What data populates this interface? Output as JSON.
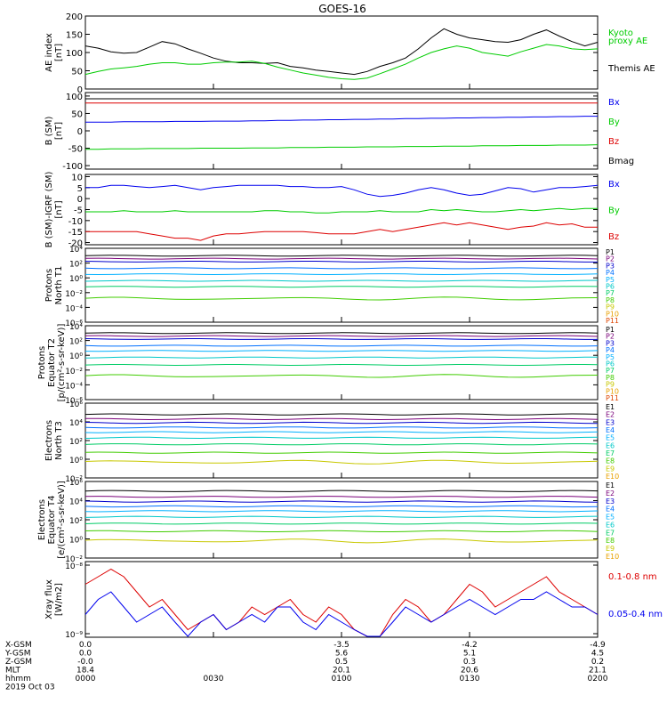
{
  "title": "GOES-16",
  "colors": {
    "black": "#000000",
    "blue": "#0000ee",
    "green": "#00cc00",
    "red": "#dd0000",
    "ch": [
      "#000000",
      "#7a007a",
      "#0000cc",
      "#0070ff",
      "#00b0ff",
      "#00c8c8",
      "#00cc66",
      "#40cc00",
      "#c8c800",
      "#e8a000",
      "#dd4400",
      "#cc0000"
    ]
  },
  "chart_data": [
    {
      "type": "line",
      "panel": "AE index",
      "ylabel": [
        "AE index",
        "[nT]"
      ],
      "ylim": [
        0,
        200
      ],
      "yticks": [
        "0",
        "50",
        "100",
        "150",
        "200"
      ],
      "legend": [
        {
          "label": "Kyoto",
          "color": "#00cc00"
        },
        {
          "label": "proxy AE",
          "color": "#00cc00"
        },
        {
          "label": "Themis AE",
          "color": "#000000"
        }
      ],
      "series": [
        {
          "name": "Themis AE",
          "color": "#000000",
          "values": [
            118,
            112,
            102,
            98,
            100,
            115,
            130,
            124,
            110,
            98,
            85,
            76,
            72,
            72,
            70,
            72,
            62,
            58,
            52,
            48,
            44,
            40,
            48,
            62,
            72,
            85,
            110,
            140,
            165,
            150,
            140,
            135,
            130,
            128,
            135,
            150,
            162,
            145,
            130,
            118,
            128
          ]
        },
        {
          "name": "Kyoto proxy AE",
          "color": "#00cc00",
          "values": [
            40,
            48,
            55,
            58,
            62,
            68,
            72,
            72,
            68,
            68,
            72,
            74,
            74,
            76,
            70,
            60,
            52,
            44,
            38,
            32,
            28,
            26,
            30,
            42,
            55,
            68,
            85,
            100,
            110,
            118,
            112,
            100,
            95,
            90,
            102,
            112,
            122,
            118,
            110,
            108,
            110
          ]
        }
      ]
    },
    {
      "type": "line",
      "panel": "B (SM)",
      "ylabel": [
        "B (SM)",
        "[nT]"
      ],
      "ylim": [
        -110,
        110
      ],
      "yticks": [
        "-100",
        "-50",
        "0",
        "50",
        "100"
      ],
      "legend": [
        {
          "label": "Bx",
          "color": "#0000ee"
        },
        {
          "label": "By",
          "color": "#00cc00"
        },
        {
          "label": "Bz",
          "color": "#dd0000"
        },
        {
          "label": "Bmag",
          "color": "#000000"
        }
      ],
      "series": [
        {
          "name": "Bmag",
          "color": "#000000",
          "values": [
            92,
            92,
            92,
            92,
            92,
            92,
            92,
            92,
            92,
            92,
            92,
            92,
            92,
            92,
            92,
            92,
            92,
            92,
            92,
            92,
            92,
            92,
            92,
            92,
            92,
            92,
            92,
            92,
            92,
            92,
            92,
            92,
            92,
            92,
            92,
            92,
            92,
            92,
            92,
            92,
            92
          ]
        },
        {
          "name": "Bz",
          "color": "#dd0000",
          "values": [
            80,
            80,
            80,
            80,
            80,
            80,
            80,
            80,
            80,
            80,
            80,
            80,
            80,
            80,
            80,
            80,
            80,
            80,
            80,
            80,
            80,
            80,
            80,
            80,
            80,
            80,
            80,
            80,
            80,
            80,
            80,
            80,
            80,
            80,
            80,
            80,
            80,
            80,
            80,
            80,
            80
          ]
        },
        {
          "name": "Bx",
          "color": "#0000ee",
          "values": [
            25,
            25,
            25,
            26,
            26,
            26,
            26,
            27,
            27,
            27,
            28,
            28,
            28,
            29,
            29,
            30,
            30,
            31,
            31,
            32,
            32,
            33,
            33,
            34,
            34,
            35,
            35,
            36,
            36,
            37,
            37,
            38,
            38,
            39,
            39,
            40,
            40,
            41,
            41,
            42,
            42
          ]
        },
        {
          "name": "By",
          "color": "#00cc00",
          "values": [
            -53,
            -53,
            -52,
            -52,
            -52,
            -51,
            -51,
            -51,
            -51,
            -50,
            -50,
            -50,
            -50,
            -49,
            -49,
            -49,
            -48,
            -48,
            -48,
            -47,
            -47,
            -47,
            -46,
            -46,
            -46,
            -45,
            -45,
            -45,
            -44,
            -44,
            -44,
            -43,
            -43,
            -43,
            -42,
            -42,
            -42,
            -41,
            -41,
            -41,
            -40
          ]
        }
      ]
    },
    {
      "type": "line",
      "panel": "B (SM)-IGRF (SM)",
      "ylabel": [
        "B (SM)-IGRF (SM)",
        "[nT]"
      ],
      "ylim": [
        -21,
        11
      ],
      "yticks": [
        "-20",
        "-15",
        "-10",
        "-5",
        "0",
        "5",
        "10"
      ],
      "legend": [
        {
          "label": "Bx",
          "color": "#0000ee"
        },
        {
          "label": "By",
          "color": "#00cc00"
        },
        {
          "label": "Bz",
          "color": "#dd0000"
        }
      ],
      "series": [
        {
          "name": "Bx",
          "color": "#0000ee",
          "values": [
            5,
            5,
            6,
            6,
            5.5,
            5,
            5.5,
            6,
            5,
            4,
            5,
            5.5,
            6,
            6,
            6,
            6,
            5.5,
            5.5,
            5,
            5,
            5.5,
            4,
            2,
            1,
            1.5,
            2.5,
            4,
            5,
            4,
            2.5,
            1.5,
            2,
            3.5,
            5,
            4.5,
            3,
            4,
            5,
            5,
            5.5,
            6
          ]
        },
        {
          "name": "By",
          "color": "#00cc00",
          "values": [
            -6,
            -6,
            -6,
            -5.5,
            -6,
            -6,
            -6,
            -5.5,
            -6,
            -6,
            -6,
            -6,
            -6,
            -6,
            -5.5,
            -5.5,
            -6,
            -6,
            -6.5,
            -6.5,
            -6,
            -6,
            -6,
            -5.5,
            -6,
            -6,
            -6,
            -5,
            -5.5,
            -5,
            -5.5,
            -6,
            -6,
            -5.5,
            -5,
            -5.5,
            -5,
            -4.5,
            -5,
            -4.5,
            -4.5
          ]
        },
        {
          "name": "Bz",
          "color": "#dd0000",
          "values": [
            -15,
            -15,
            -15,
            -15,
            -15,
            -16,
            -17,
            -18,
            -18,
            -19,
            -17,
            -16,
            -16,
            -15.5,
            -15,
            -15,
            -15,
            -15,
            -15.5,
            -16,
            -16,
            -16,
            -15,
            -14,
            -15,
            -14,
            -13,
            -12,
            -11,
            -12,
            -11,
            -12,
            -13,
            -14,
            -13,
            -12.5,
            -11,
            -12,
            -11.5,
            -13,
            -13
          ]
        }
      ]
    },
    {
      "type": "line",
      "panel": "Protons North T1",
      "ylabel": [
        "Protons",
        "North T1"
      ],
      "yscale": "log",
      "ylim": [
        1e-06,
        10000.0
      ],
      "yticks": [
        "10⁻⁶",
        "10⁻⁴",
        "10⁻²",
        "10⁰",
        "10²",
        "10⁴"
      ],
      "legend": [
        "P1",
        "P2",
        "P3",
        "P4",
        "P5",
        "P6",
        "P7",
        "P8",
        "P9",
        "P10",
        "P11"
      ],
      "levels_log10": [
        3.0,
        2.6,
        2.2,
        1.3,
        0.5,
        -0.4,
        -1.2,
        -2.8
      ]
    },
    {
      "type": "line",
      "panel": "Protons Equator T2",
      "ylabel": [
        "Protons",
        "Equator T2",
        "[p/(cm²-s-sr-keV)]"
      ],
      "yscale": "log",
      "ylim": [
        1e-06,
        10000.0
      ],
      "yticks": [
        "10⁻⁶",
        "10⁻⁴",
        "10⁻²",
        "10⁰",
        "10²",
        "10⁴"
      ],
      "legend": [
        "P1",
        "P2",
        "P3",
        "P4",
        "P5",
        "P6",
        "P7",
        "P8",
        "P9",
        "P10",
        "P11"
      ],
      "levels_log10": [
        3.0,
        2.6,
        2.2,
        1.3,
        0.6,
        -0.3,
        -1.3,
        -2.8
      ]
    },
    {
      "type": "line",
      "panel": "Electrons North T3",
      "ylabel": [
        "Electrons",
        "North T3"
      ],
      "yscale": "log",
      "ylim": [
        0.01,
        1000000.0
      ],
      "yticks": [
        "10⁻²",
        "10⁰",
        "10²",
        "10⁴",
        "10⁶"
      ],
      "legend": [
        "E1",
        "E2",
        "E3",
        "E4",
        "E5",
        "E6",
        "E7",
        "E8",
        "E9",
        "E10"
      ],
      "levels_log10": [
        4.8,
        4.3,
        3.9,
        3.4,
        2.9,
        2.3,
        1.6,
        0.7,
        -0.3
      ]
    },
    {
      "type": "line",
      "panel": "Electrons Equator T4",
      "ylabel": [
        "Electrons",
        "Equator T4",
        "[e/(cm²-s-sr-keV)]"
      ],
      "yscale": "log",
      "ylim": [
        0.01,
        1000000.0
      ],
      "yticks": [
        "10⁻²",
        "10⁰",
        "10²",
        "10⁴",
        "10⁶"
      ],
      "legend": [
        "E1",
        "E2",
        "E3",
        "E4",
        "E5",
        "E6",
        "E7",
        "E8",
        "E9",
        "E10"
      ],
      "levels_log10": [
        5.0,
        4.4,
        3.9,
        3.4,
        2.9,
        2.3,
        1.6,
        0.8,
        -0.2
      ]
    },
    {
      "type": "line",
      "panel": "Xray flux",
      "ylabel": [
        "Xray flux",
        "[W/m2]"
      ],
      "yscale": "log",
      "ylim": [
        1e-09,
        1e-08
      ],
      "yticks": [
        "10⁻⁸",
        "10⁻⁹"
      ],
      "legend": [
        {
          "label": "0.1-0.8 nm",
          "color": "#dd0000"
        },
        {
          "label": "0.05-0.4 nm",
          "color": "#0000ee"
        }
      ],
      "series": [
        {
          "name": "0.1-0.8 nm",
          "color": "#dd0000",
          "values": [
            -8.3,
            -8.2,
            -8.1,
            -8.2,
            -8.4,
            -8.6,
            -8.5,
            -8.7,
            -8.9,
            -8.8,
            -8.7,
            -8.9,
            -8.8,
            -8.6,
            -8.7,
            -8.6,
            -8.5,
            -8.7,
            -8.8,
            -8.6,
            -8.7,
            -8.9,
            -9.1,
            -9.2,
            -8.7,
            -8.5,
            -8.6,
            -8.8,
            -8.7,
            -8.5,
            -8.3,
            -8.4,
            -8.6,
            -8.5,
            -8.4,
            -8.3,
            -8.2,
            -8.4,
            -8.5,
            -8.6,
            -8.7
          ]
        },
        {
          "name": "0.05-0.4 nm",
          "color": "#0000ee",
          "values": [
            -8.7,
            -8.5,
            -8.4,
            -8.6,
            -8.8,
            -8.7,
            -8.6,
            -8.8,
            -9.0,
            -8.8,
            -8.7,
            -8.9,
            -8.8,
            -8.7,
            -8.8,
            -8.6,
            -8.6,
            -8.8,
            -8.9,
            -8.7,
            -8.8,
            -8.9,
            -9.0,
            -9.0,
            -8.8,
            -8.6,
            -8.7,
            -8.8,
            -8.7,
            -8.6,
            -8.5,
            -8.6,
            -8.7,
            -8.6,
            -8.5,
            -8.5,
            -8.4,
            -8.5,
            -8.6,
            -8.6,
            -8.7
          ]
        }
      ]
    }
  ],
  "x_axis": {
    "rows": [
      {
        "label": "X-GSM",
        "values": [
          "0.0",
          "",
          "-3.5",
          "-4.2",
          "-4.9"
        ]
      },
      {
        "label": "Y-GSM",
        "values": [
          "0.0",
          "",
          "5.6",
          "5.1",
          "4.5"
        ]
      },
      {
        "label": "Z-GSM",
        "values": [
          "-0.0",
          "",
          "0.5",
          "0.3",
          "0.2"
        ]
      },
      {
        "label": "MLT",
        "values": [
          "18.4",
          "",
          "20.1",
          "20.6",
          "21.1"
        ]
      },
      {
        "label": "hhmm",
        "values": [
          "0000",
          "0030",
          "0100",
          "0130",
          "0200"
        ]
      }
    ],
    "date": "2019 Oct 03"
  }
}
